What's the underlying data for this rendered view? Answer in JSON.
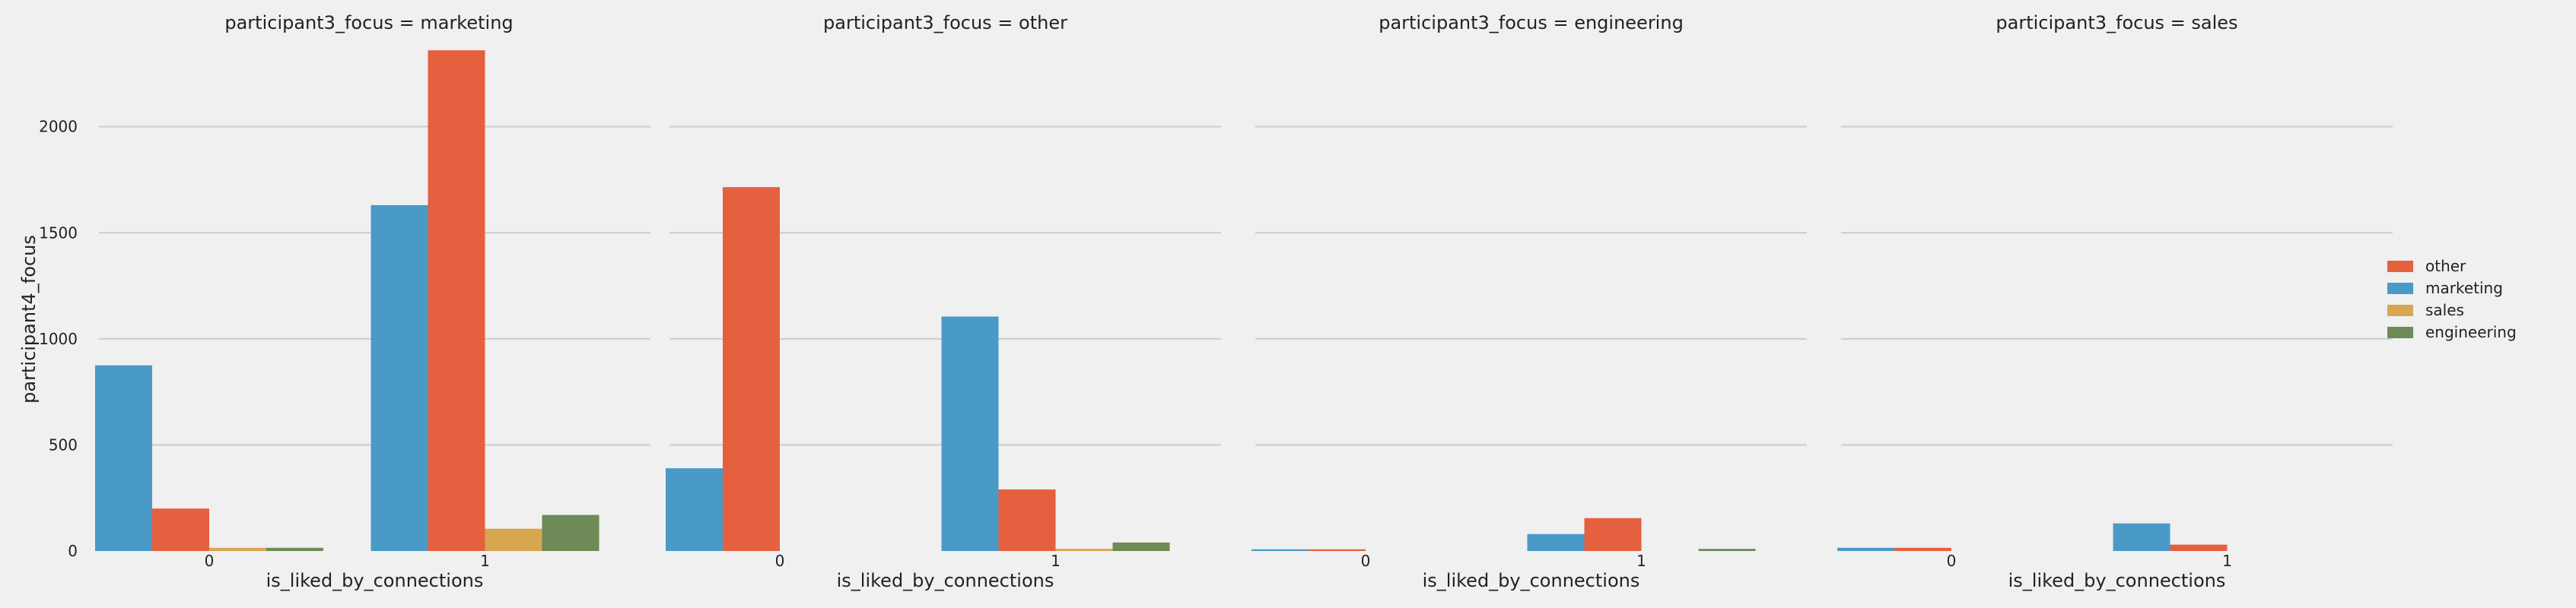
{
  "chart_data": [
    {
      "type": "bar",
      "title": "participant3_focus = marketing",
      "xlabel": "is_liked_by_connections",
      "ylabel": "participant4_focus",
      "categories": [
        "0",
        "1"
      ],
      "series": [
        {
          "name": "marketing",
          "values": [
            875,
            1630
          ]
        },
        {
          "name": "other",
          "values": [
            200,
            2360
          ]
        },
        {
          "name": "sales",
          "values": [
            15,
            105
          ]
        },
        {
          "name": "engineering",
          "values": [
            15,
            170
          ]
        }
      ]
    },
    {
      "type": "bar",
      "title": "participant3_focus = other",
      "xlabel": "is_liked_by_connections",
      "ylabel": "",
      "categories": [
        "0",
        "1"
      ],
      "series": [
        {
          "name": "marketing",
          "values": [
            390,
            1105
          ]
        },
        {
          "name": "other",
          "values": [
            1715,
            290
          ]
        },
        {
          "name": "sales",
          "values": [
            0,
            10
          ]
        },
        {
          "name": "engineering",
          "values": [
            0,
            40
          ]
        }
      ]
    },
    {
      "type": "bar",
      "title": "participant3_focus = engineering",
      "xlabel": "is_liked_by_connections",
      "ylabel": "",
      "categories": [
        "0",
        "1"
      ],
      "series": [
        {
          "name": "marketing",
          "values": [
            8,
            80
          ]
        },
        {
          "name": "other",
          "values": [
            8,
            155
          ]
        },
        {
          "name": "sales",
          "values": [
            0,
            0
          ]
        },
        {
          "name": "engineering",
          "values": [
            0,
            10
          ]
        }
      ]
    },
    {
      "type": "bar",
      "title": "participant3_focus = sales",
      "xlabel": "is_liked_by_connections",
      "ylabel": "",
      "categories": [
        "0",
        "1"
      ],
      "series": [
        {
          "name": "marketing",
          "values": [
            15,
            130
          ]
        },
        {
          "name": "other",
          "values": [
            15,
            30
          ]
        },
        {
          "name": "sales",
          "values": [
            0,
            0
          ]
        },
        {
          "name": "engineering",
          "values": [
            0,
            0
          ]
        }
      ]
    }
  ],
  "shared_y": {
    "ylim": [
      0,
      2400
    ],
    "ticks": [
      "0",
      "500",
      "1000",
      "1500",
      "2000"
    ],
    "grid": true
  },
  "legend": {
    "placement": "right",
    "entries": [
      {
        "label": "other",
        "color": "#e5603f"
      },
      {
        "label": "marketing",
        "color": "#4a9ac7"
      },
      {
        "label": "sales",
        "color": "#d6a651"
      },
      {
        "label": "engineering",
        "color": "#6d8a57"
      }
    ]
  },
  "series_colors": {
    "marketing": "#4a9ac7",
    "other": "#e5603f",
    "sales": "#d6a651",
    "engineering": "#6d8a57"
  }
}
